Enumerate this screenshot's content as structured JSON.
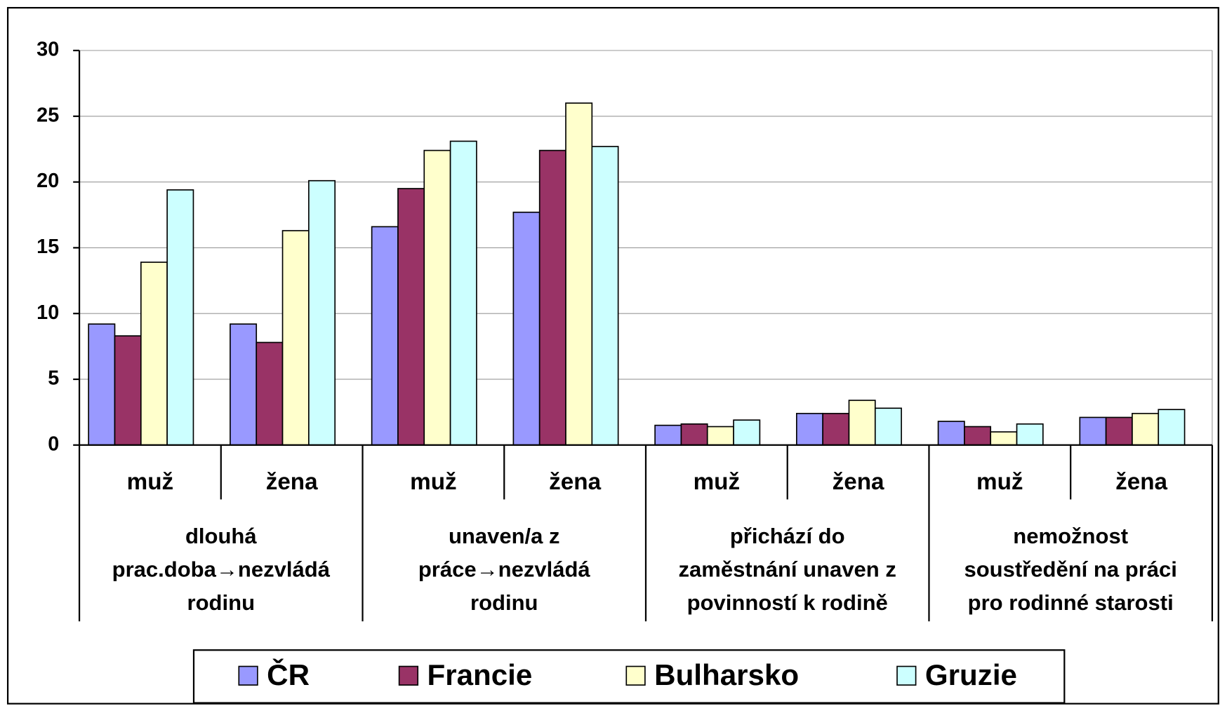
{
  "chart_data": {
    "type": "bar",
    "categories": [
      "muž",
      "žena",
      "muž",
      "žena",
      "muž",
      "žena",
      "muž",
      "žena"
    ],
    "groups": [
      [
        "dlouhá",
        "prac.doba→nezvládá",
        "rodinu"
      ],
      [
        "unaven/a z",
        "práce→nezvládá",
        "rodinu"
      ],
      [
        "přichází do",
        "zaměstnání unaven z",
        "povinností k rodině"
      ],
      [
        "nemožnost",
        "soustředění na práci",
        "pro rodinné starosti"
      ]
    ],
    "series": [
      {
        "name": "ČR",
        "color": "#9999ff",
        "values": [
          9.2,
          9.2,
          16.6,
          17.7,
          1.5,
          2.4,
          1.8,
          2.1
        ]
      },
      {
        "name": "Francie",
        "color": "#993366",
        "values": [
          8.3,
          7.8,
          19.5,
          22.4,
          1.6,
          2.4,
          1.4,
          2.1
        ]
      },
      {
        "name": "Bulharsko",
        "color": "#ffffcc",
        "values": [
          13.9,
          16.3,
          22.4,
          26.0,
          1.4,
          3.4,
          1.0,
          2.4
        ]
      },
      {
        "name": "Gruzie",
        "color": "#ccffff",
        "values": [
          19.4,
          20.1,
          23.1,
          22.7,
          1.9,
          2.8,
          1.6,
          2.7
        ]
      }
    ],
    "ylim": [
      0,
      30
    ],
    "yticks": [
      0,
      5,
      10,
      15,
      20,
      25,
      30
    ],
    "grid": true,
    "legend": "bottom"
  }
}
